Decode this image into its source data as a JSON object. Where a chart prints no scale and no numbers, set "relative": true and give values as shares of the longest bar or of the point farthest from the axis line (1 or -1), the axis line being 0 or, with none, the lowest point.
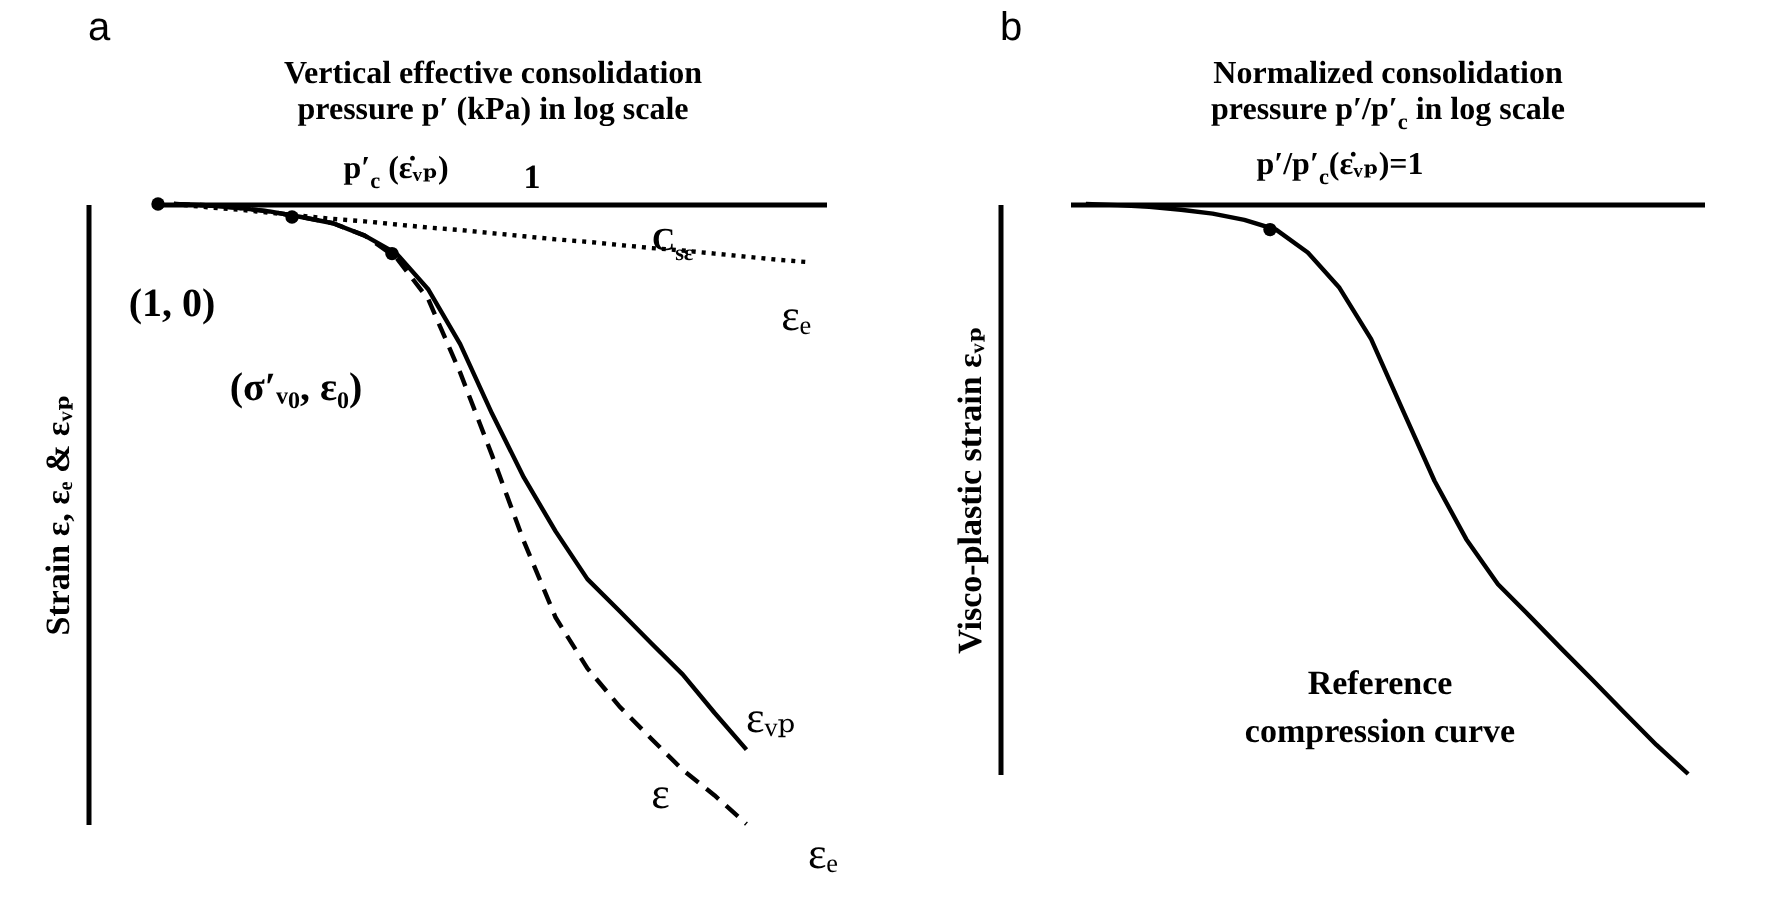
{
  "chart_data": [
    {
      "type": "line",
      "title": "a",
      "xlabel": "Vertical effective consolidation pressure p′ (kPa) in log scale",
      "ylabel": "Strain ε, εₑ & εᵥₚ",
      "relative": true,
      "categories": [
        null,
        null,
        null,
        null,
        null,
        null,
        null,
        null,
        null,
        null,
        null,
        null,
        null,
        null,
        null,
        null,
        null,
        null,
        null,
        null,
        null
      ],
      "series": [
        {
          "name": "εₑ",
          "color": "#000000",
          "line_style": "dotted",
          "values": [
            0,
            -0.005,
            -0.009,
            -0.014,
            -0.019,
            -0.024,
            -0.028,
            -0.033,
            -0.038,
            -0.042,
            -0.047,
            -0.052,
            -0.057,
            -0.061,
            -0.066,
            -0.071,
            -0.075,
            -0.08,
            -0.085,
            -0.09,
            -0.094
          ]
        },
        {
          "name": "εᵥₚ",
          "color": "#000000",
          "line_style": "solid",
          "values": [
            0,
            -0.002,
            -0.006,
            -0.012,
            -0.021,
            -0.031,
            -0.051,
            -0.08,
            -0.138,
            -0.226,
            -0.338,
            -0.441,
            -0.528,
            -0.605,
            -0.656,
            -0.708,
            -0.759,
            -0.821,
            -0.88,
            null,
            null
          ]
        },
        {
          "name": "ε",
          "color": "#000000",
          "line_style": "dashed",
          "values": [
            0,
            -0.002,
            -0.006,
            -0.012,
            -0.021,
            -0.031,
            -0.051,
            -0.087,
            -0.154,
            -0.272,
            -0.405,
            -0.544,
            -0.667,
            -0.749,
            -0.81,
            -0.862,
            -0.913,
            -0.954,
            -1,
            null,
            null
          ]
        }
      ],
      "annotations": [
        "p′$_{c}$ (ε̇ᵥₚ)",
        "1",
        "C$_{sε}$",
        "(1, 0)",
        "(σ′ᵥ₀, ε₀)",
        "εₑ"
      ]
    },
    {
      "type": "line",
      "title": "b",
      "xlabel": "Normalized consolidation pressure p′/p′$_{c}$ in log scale",
      "ylabel": "Visco-plastic strain εᵥₚ",
      "relative": true,
      "categories": [
        null,
        null,
        null,
        null,
        null,
        null,
        null,
        null,
        null,
        null,
        null,
        null,
        null,
        null,
        null,
        null,
        null,
        null,
        null,
        null
      ],
      "series": [
        {
          "color": "#000000",
          "line_style": "solid",
          "values": [
            0,
            -0.002,
            -0.005,
            -0.01,
            -0.017,
            -0.028,
            -0.045,
            -0.085,
            -0.147,
            -0.237,
            -0.362,
            -0.486,
            -0.588,
            -0.667,
            -0.723,
            -0.78,
            -0.836,
            -0.893,
            -0.949,
            -1
          ]
        }
      ],
      "annotations": [
        "p′/p′$_{c}$(ε̇ᵥₚ)=1",
        "Reference compression curve"
      ]
    }
  ]
}
